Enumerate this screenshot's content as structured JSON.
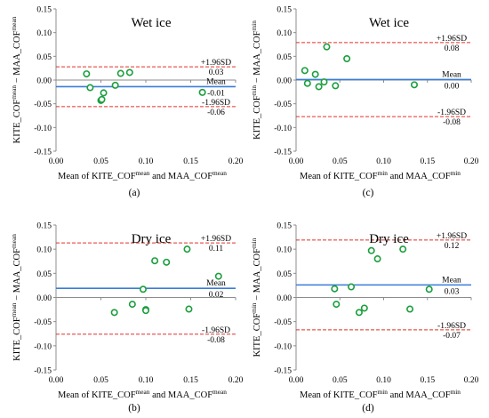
{
  "colors": {
    "points": "#1a9e3c",
    "mean_line": "#3a7dd8",
    "limit_line": "#e0302a",
    "axis": "#8c8c8c"
  },
  "chart_data": [
    {
      "type": "scatter",
      "caption": "(a)",
      "title": "Wet ice",
      "xlabel": "Mean of KITE_COF^mean and MAA_COF^mean",
      "ylabel": "KITE_COF^mean − MAA_COF^mean",
      "xlim": [
        0,
        0.2
      ],
      "ylim": [
        -0.15,
        0.15
      ],
      "xticks": [
        "0.00",
        "0.05",
        "0.10",
        "0.15",
        "0.20"
      ],
      "yticks": [
        "-0.15",
        "-0.10",
        "-0.05",
        "0.00",
        "0.05",
        "0.10",
        "0.15"
      ],
      "points": [
        {
          "x": 0.034,
          "y": 0.013
        },
        {
          "x": 0.038,
          "y": -0.016
        },
        {
          "x": 0.05,
          "y": -0.043
        },
        {
          "x": 0.051,
          "y": -0.041
        },
        {
          "x": 0.053,
          "y": -0.027
        },
        {
          "x": 0.066,
          "y": -0.011
        },
        {
          "x": 0.072,
          "y": 0.014
        },
        {
          "x": 0.082,
          "y": 0.016
        },
        {
          "x": 0.163,
          "y": -0.026
        }
      ],
      "mean": -0.014,
      "upper": 0.028,
      "lower": -0.056,
      "labels": {
        "upper_name": "+1.96SD",
        "upper_value": "0.03",
        "mean_name": "Mean",
        "mean_value": "-0.01",
        "lower_name": "-1.96SD",
        "lower_value": "-0.06"
      }
    },
    {
      "type": "scatter",
      "caption": "(c)",
      "title": "Wet ice",
      "xlabel": "Mean of KITE_COF^min and MAA_COF^min",
      "ylabel": "KITE_COF^min − MAA_COF^min",
      "xlim": [
        0,
        0.2
      ],
      "ylim": [
        -0.15,
        0.15
      ],
      "xticks": [
        "0.00",
        "0.05",
        "0.10",
        "0.15",
        "0.20"
      ],
      "yticks": [
        "-0.15",
        "-0.10",
        "-0.05",
        "0.00",
        "0.05",
        "0.10",
        "0.15"
      ],
      "points": [
        {
          "x": 0.01,
          "y": 0.02
        },
        {
          "x": 0.013,
          "y": -0.007
        },
        {
          "x": 0.022,
          "y": 0.012
        },
        {
          "x": 0.026,
          "y": -0.014
        },
        {
          "x": 0.032,
          "y": -0.004
        },
        {
          "x": 0.035,
          "y": 0.07
        },
        {
          "x": 0.045,
          "y": -0.012
        },
        {
          "x": 0.058,
          "y": 0.045
        },
        {
          "x": 0.135,
          "y": -0.01
        }
      ],
      "mean": 0.001,
      "upper": 0.079,
      "lower": -0.077,
      "labels": {
        "upper_name": "+1.96SD",
        "upper_value": "0.08",
        "mean_name": "Mean",
        "mean_value": "0.00",
        "lower_name": "-1.96SD",
        "lower_value": "-0.08"
      }
    },
    {
      "type": "scatter",
      "caption": "(b)",
      "title": "Dry ice",
      "xlabel": "Mean of KITE_COF^mean and MAA_COF^mean",
      "ylabel": "KITE_COF^mean − MAA_COF^mean",
      "xlim": [
        0,
        0.2
      ],
      "ylim": [
        -0.15,
        0.15
      ],
      "xticks": [
        "0.00",
        "0.05",
        "0.10",
        "0.15",
        "0.20"
      ],
      "yticks": [
        "-0.15",
        "-0.10",
        "-0.05",
        "0.00",
        "0.05",
        "0.10",
        "0.15"
      ],
      "points": [
        {
          "x": 0.065,
          "y": -0.031
        },
        {
          "x": 0.085,
          "y": -0.014
        },
        {
          "x": 0.097,
          "y": 0.017
        },
        {
          "x": 0.1,
          "y": -0.025
        },
        {
          "x": 0.1,
          "y": -0.027
        },
        {
          "x": 0.11,
          "y": 0.076
        },
        {
          "x": 0.123,
          "y": 0.073
        },
        {
          "x": 0.146,
          "y": 0.1
        },
        {
          "x": 0.148,
          "y": -0.024
        },
        {
          "x": 0.181,
          "y": 0.044
        }
      ],
      "mean": 0.019,
      "upper": 0.113,
      "lower": -0.076,
      "labels": {
        "upper_name": "+1.96SD",
        "upper_value": "0.11",
        "mean_name": "Mean",
        "mean_value": "0.02",
        "lower_name": "-1.96SD",
        "lower_value": "-0.08"
      }
    },
    {
      "type": "scatter",
      "caption": "(d)",
      "title": "Dry ice",
      "xlabel": "Mean of KITE_COF^min and MAA_COF^min",
      "ylabel": "KITE_COF^min − MAA_COF^min",
      "xlim": [
        0,
        0.2
      ],
      "ylim": [
        -0.15,
        0.15
      ],
      "xticks": [
        "0.00",
        "0.05",
        "0.10",
        "0.15",
        "0.20"
      ],
      "yticks": [
        "-0.15",
        "-0.10",
        "-0.05",
        "0.00",
        "0.05",
        "0.10",
        "0.15"
      ],
      "points": [
        {
          "x": 0.044,
          "y": 0.018
        },
        {
          "x": 0.046,
          "y": -0.014
        },
        {
          "x": 0.063,
          "y": 0.022
        },
        {
          "x": 0.072,
          "y": -0.031
        },
        {
          "x": 0.078,
          "y": -0.022
        },
        {
          "x": 0.086,
          "y": 0.097
        },
        {
          "x": 0.093,
          "y": 0.08
        },
        {
          "x": 0.122,
          "y": 0.1
        },
        {
          "x": 0.13,
          "y": -0.024
        },
        {
          "x": 0.152,
          "y": 0.017
        }
      ],
      "mean": 0.026,
      "upper": 0.119,
      "lower": -0.067,
      "labels": {
        "upper_name": "+1.96SD",
        "upper_value": "0.12",
        "mean_name": "Mean",
        "mean_value": "0.03",
        "lower_name": "-1.96SD",
        "lower_value": "-0.07"
      }
    }
  ]
}
